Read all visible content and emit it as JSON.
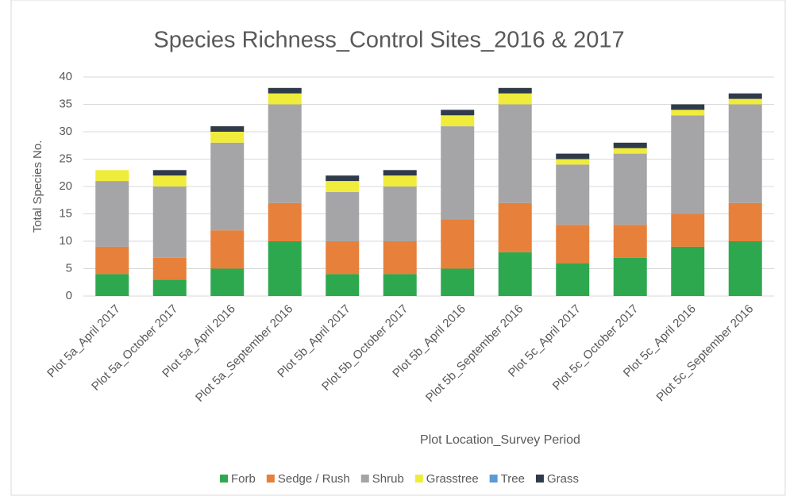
{
  "chart_data": {
    "type": "stacked_bar",
    "title": "Species Richness_Control Sites_2016 & 2017",
    "x_label": "Plot Location_Survey Period",
    "y_label": "Total Species No.",
    "categories": [
      "Plot 5a_April 2017",
      "Plot 5a_October 2017",
      "Plot 5a_April 2016",
      "Plot 5a_September 2016",
      "Plot 5b_April 2017",
      "Plot 5b_October 2017",
      "Plot 5b_April 2016",
      "Plot 5b_September 2016",
      "Plot 5c_April 2017",
      "Plot 5c_October 2017",
      "Plot 5c_April 2016",
      "Plot 5c_September 2016"
    ],
    "series": [
      {
        "name": "Forb",
        "color": "#2ea84f",
        "values": [
          4,
          3,
          5,
          10,
          4,
          4,
          5,
          8,
          6,
          7,
          9,
          10
        ]
      },
      {
        "name": "Sedge / Rush",
        "color": "#e6803a",
        "values": [
          5,
          4,
          7,
          7,
          6,
          6,
          9,
          9,
          7,
          6,
          6,
          7
        ]
      },
      {
        "name": "Shrub",
        "color": "#a5a5a7",
        "values": [
          12,
          13,
          16,
          18,
          9,
          10,
          17,
          18,
          11,
          13,
          18,
          18
        ]
      },
      {
        "name": "Grasstree",
        "color": "#f0ec3c",
        "values": [
          2,
          2,
          2,
          2,
          2,
          2,
          2,
          2,
          1,
          1,
          1,
          1
        ]
      },
      {
        "name": "Tree",
        "color": "#5b9bd5",
        "values": [
          0,
          0,
          0,
          0,
          0,
          0,
          0,
          0,
          0,
          0,
          0,
          0
        ]
      },
      {
        "name": "Grass",
        "color": "#2f3a4a",
        "values": [
          0,
          1,
          1,
          1,
          1,
          1,
          1,
          1,
          1,
          1,
          1,
          1
        ]
      }
    ],
    "ylim": [
      0,
      40
    ],
    "yticks": [
      0,
      5,
      10,
      15,
      20,
      25,
      30,
      35,
      40
    ],
    "grid": true,
    "legend": "bottom"
  }
}
